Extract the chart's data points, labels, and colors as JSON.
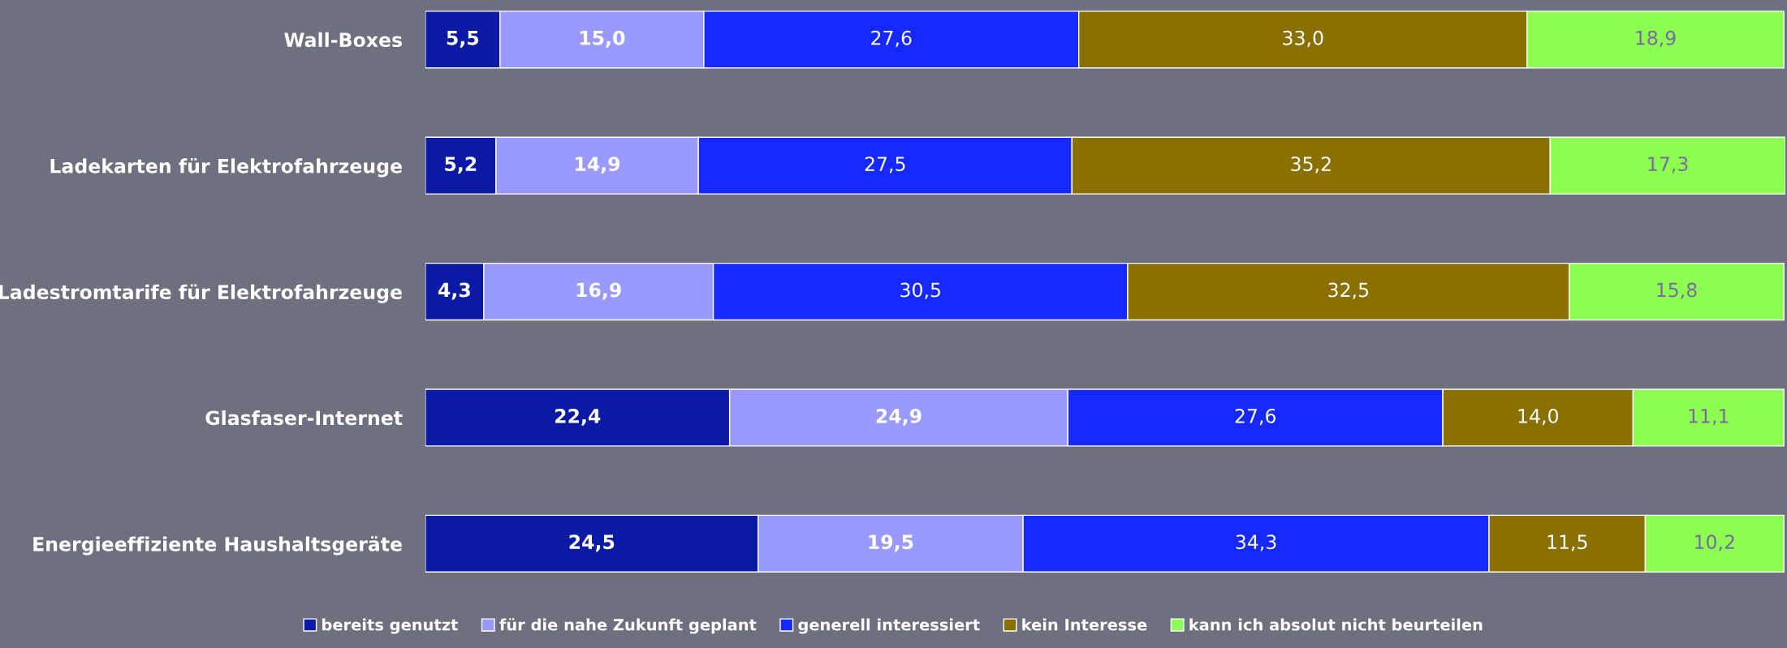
{
  "chart_data": {
    "type": "bar",
    "orientation": "horizontal",
    "stacked": true,
    "legend": "bottom",
    "categories": [
      "Wall-Boxes",
      "Ladekarten für Elektrofahrzeuge",
      "Ladestromtarife für Elektrofahrzeuge",
      "Glasfaser-Internet",
      "Energieeffiziente Haushaltsgeräte"
    ],
    "series": [
      {
        "name": "bereits genutzt",
        "color": "#0a1aa5",
        "values": [
          5.5,
          5.2,
          4.3,
          22.4,
          24.5
        ],
        "value_labels": [
          "5,5",
          "5,2",
          "4,3",
          "22,4",
          "24,5"
        ]
      },
      {
        "name": "für die nahe Zukunft geplant",
        "color": "#9999ff",
        "values": [
          15.0,
          14.9,
          16.9,
          24.9,
          19.5
        ],
        "value_labels": [
          "15,0",
          "14,9",
          "16,9",
          "24,9",
          "19,5"
        ]
      },
      {
        "name": "generell interessiert",
        "color": "#1428ff",
        "values": [
          27.6,
          27.5,
          30.5,
          27.6,
          34.3
        ],
        "value_labels": [
          "27,6",
          "27,5",
          "30,5",
          "27,6",
          "34,3"
        ]
      },
      {
        "name": "kein Interesse",
        "color": "#8a7000",
        "values": [
          33.0,
          35.2,
          32.5,
          14.0,
          11.5
        ],
        "value_labels": [
          "33,0",
          "35,2",
          "32,5",
          "14,0",
          "11,5"
        ]
      },
      {
        "name": "kann ich absolut nicht beurteilen",
        "color": "#8cff50",
        "values": [
          18.9,
          17.3,
          15.8,
          11.1,
          10.2
        ],
        "value_labels": [
          "18,9",
          "17,3",
          "15,8",
          "11,1",
          "10,2"
        ]
      }
    ]
  }
}
